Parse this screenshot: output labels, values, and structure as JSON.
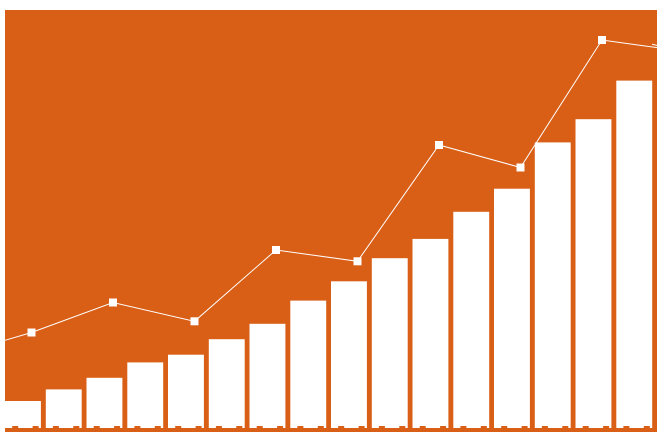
{
  "chart_data": {
    "type": "bar",
    "title": "",
    "xlabel": "",
    "ylabel": "",
    "ylim": [
      0,
      100
    ],
    "grid": false,
    "legend": "none",
    "colors": {
      "background": "#D95E16",
      "bar": "#FFFFFF",
      "line": "#FFFFFF",
      "marker": "#FFFFFF",
      "tick": "#D95E16"
    },
    "bar_series": {
      "name": "",
      "values": [
        7,
        10,
        13,
        17,
        19,
        23,
        27,
        33,
        38,
        44,
        49,
        56,
        62,
        74,
        80,
        90
      ]
    },
    "line_series": {
      "name": "",
      "x": [
        0,
        2,
        4,
        6,
        8,
        10,
        12,
        14,
        16
      ],
      "values": [
        18,
        26,
        21,
        40,
        37,
        68,
        62,
        96,
        93
      ]
    }
  }
}
